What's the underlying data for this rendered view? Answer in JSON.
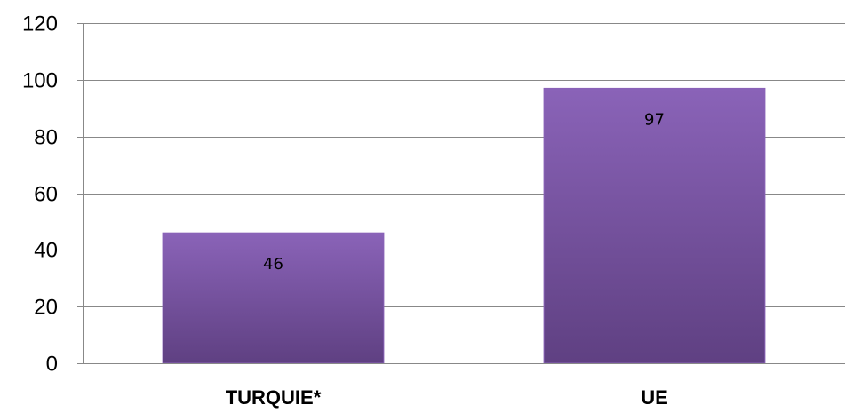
{
  "chart_data": {
    "type": "bar",
    "categories": [
      "TURQUIE*",
      "UE"
    ],
    "values": [
      46,
      97
    ],
    "data_labels": [
      "46",
      "97"
    ],
    "y_ticks": [
      "0",
      "20",
      "40",
      "60",
      "80",
      "100",
      "120"
    ],
    "ylim": [
      0,
      120
    ],
    "grid": true,
    "legend": "none",
    "bar_color": "#7a55a3",
    "bar_color_light": "#8a63b8",
    "bar_color_dark": "#5f4082",
    "grid_color": "#888888"
  }
}
